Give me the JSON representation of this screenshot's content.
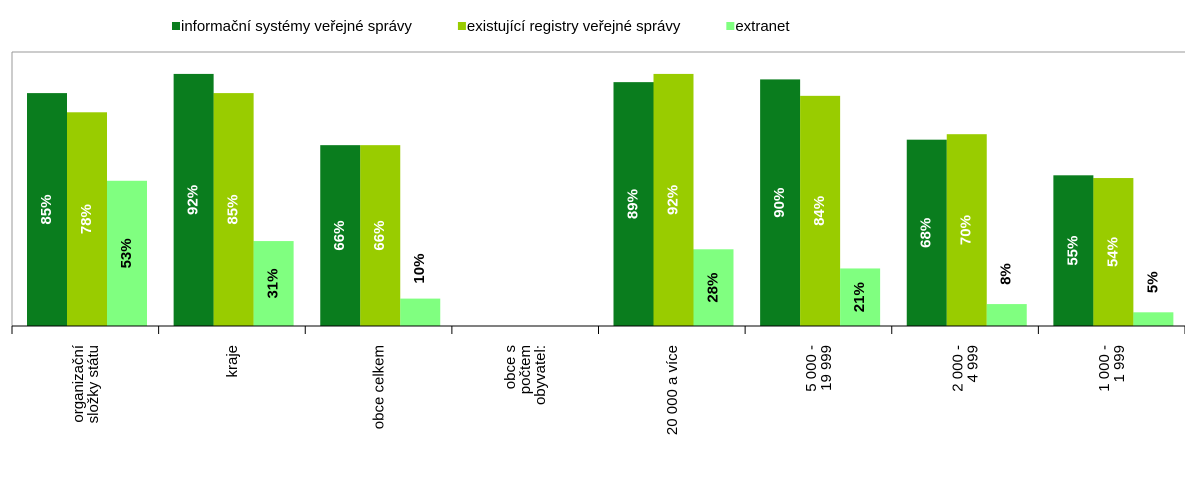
{
  "chart_data": {
    "type": "bar",
    "categories": [
      "organizační\nsložky státu",
      "kraje",
      "obce celkem",
      "obce s\npočtem\nobyvatel:",
      "20 000 a více",
      "5 000 -\n19 999",
      "2 000 -\n4 999",
      "1 000 -\n1 999"
    ],
    "series": [
      {
        "name": "informační systémy veřejné správy",
        "color": "#0a7d1e",
        "values": [
          85,
          92,
          66,
          null,
          89,
          90,
          68,
          55
        ],
        "value_labels": [
          "85%",
          "92%",
          "66%",
          null,
          "89%",
          "90%",
          "68%",
          "55%"
        ]
      },
      {
        "name": "existující registry veřejné správy",
        "color": "#99cc00",
        "values": [
          78,
          85,
          66,
          null,
          92,
          84,
          70,
          54
        ],
        "value_labels": [
          "78%",
          "85%",
          "66%",
          null,
          "92%",
          "84%",
          "70%",
          "54%"
        ]
      },
      {
        "name": "extranet",
        "color": "#80ff80",
        "values": [
          53,
          31,
          10,
          null,
          28,
          21,
          8,
          5
        ],
        "value_labels": [
          "53%",
          "31%",
          "10%",
          null,
          "28%",
          "21%",
          "8%",
          "5%"
        ]
      }
    ],
    "ylim": [
      0,
      100
    ],
    "legend": "top"
  }
}
